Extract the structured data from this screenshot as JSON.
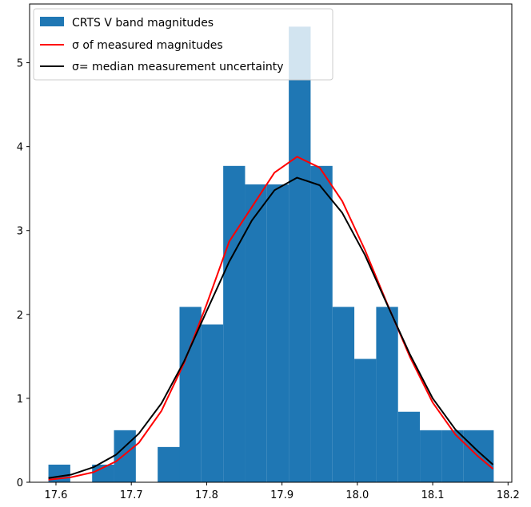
{
  "chart_data": {
    "type": "histogram",
    "bin_edges": [
      17.59,
      17.619,
      17.648,
      17.677,
      17.706,
      17.735,
      17.764,
      17.793,
      17.822,
      17.851,
      17.88,
      17.909,
      17.938,
      17.967,
      17.996,
      18.025,
      18.054,
      18.083,
      18.112,
      18.141,
      18.181
    ],
    "bar_heights": [
      0.21,
      0.0,
      0.21,
      0.62,
      0.0,
      0.42,
      2.09,
      1.88,
      3.77,
      3.55,
      3.55,
      5.43,
      3.77,
      2.09,
      1.47,
      2.09,
      0.84,
      0.62,
      0.62,
      0.62
    ],
    "series": [
      {
        "name": "CRTS V band magnitudes",
        "kind": "bar",
        "color": "#1f77b4"
      },
      {
        "name": "σ of measured magnitudes",
        "kind": "line",
        "color": "#ff0000",
        "x": [
          17.59,
          17.62,
          17.65,
          17.68,
          17.71,
          17.74,
          17.77,
          17.8,
          17.83,
          17.86,
          17.89,
          17.92,
          17.95,
          17.98,
          18.01,
          18.04,
          18.07,
          18.1,
          18.13,
          18.16,
          18.18
        ],
        "y": [
          0.03,
          0.06,
          0.12,
          0.25,
          0.47,
          0.85,
          1.42,
          2.12,
          2.87,
          3.28,
          3.69,
          3.88,
          3.75,
          3.35,
          2.77,
          2.12,
          1.49,
          0.95,
          0.57,
          0.31,
          0.16
        ]
      },
      {
        "name": "σ= median measurement uncertainty",
        "kind": "line",
        "color": "#000000",
        "x": [
          17.59,
          17.62,
          17.65,
          17.68,
          17.71,
          17.74,
          17.77,
          17.8,
          17.83,
          17.86,
          17.89,
          17.92,
          17.95,
          17.98,
          18.01,
          18.04,
          18.07,
          18.1,
          18.13,
          18.16,
          18.18
        ],
        "y": [
          0.05,
          0.09,
          0.18,
          0.33,
          0.58,
          0.94,
          1.44,
          2.04,
          2.63,
          3.12,
          3.48,
          3.63,
          3.54,
          3.21,
          2.71,
          2.11,
          1.52,
          1.0,
          0.63,
          0.37,
          0.21
        ]
      }
    ],
    "x_ticks": [
      "17.6",
      "17.7",
      "17.8",
      "17.9",
      "18.0",
      "18.1",
      "18.2"
    ],
    "y_ticks": [
      "0",
      "1",
      "2",
      "3",
      "4",
      "5"
    ],
    "xlim": [
      17.565,
      18.205
    ],
    "ylim": [
      0,
      5.7
    ],
    "legend_position": "top-left",
    "grid": false
  }
}
